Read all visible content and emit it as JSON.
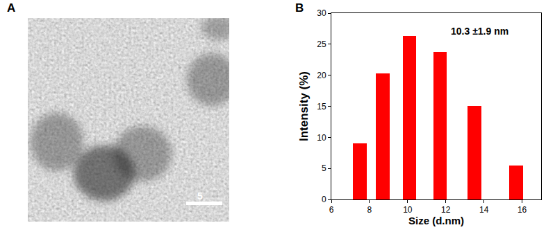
{
  "panel_labels": [
    "A",
    "B"
  ],
  "image": {
    "scale_bar_label": "5"
  },
  "chart_data": {
    "type": "bar",
    "x": [
      7.5,
      8.7,
      10.1,
      11.7,
      13.5,
      15.7
    ],
    "values": [
      9.0,
      20.3,
      26.3,
      23.8,
      15.1,
      5.5
    ],
    "color": "#ff0000",
    "xlabel": "Size (d.nm)",
    "ylabel": "Intensity (%)",
    "xlim": [
      6,
      17
    ],
    "xticks": [
      6,
      8,
      10,
      12,
      14,
      16
    ],
    "ylim": [
      0,
      30
    ],
    "yticks": [
      0,
      5,
      10,
      15,
      20,
      25,
      30
    ],
    "annotations": [
      "10.3 ±1.9 nm"
    ],
    "grid": false
  }
}
